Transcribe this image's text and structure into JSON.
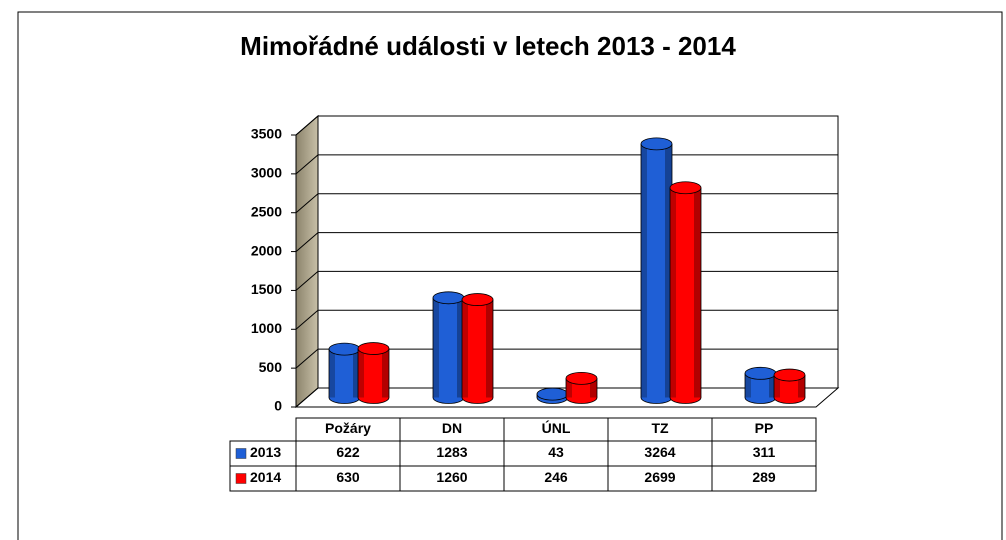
{
  "chart_data": {
    "type": "bar",
    "title": "Mimořádné události v letech 2013 - 2014",
    "categories": [
      "Požáry",
      "DN",
      "ÚNL",
      "TZ",
      "PP"
    ],
    "series": [
      {
        "name": "2013",
        "color": "#1f5fd6",
        "values": [
          622,
          1283,
          43,
          3264,
          311
        ]
      },
      {
        "name": "2014",
        "color": "#ff0000",
        "values": [
          630,
          1260,
          246,
          2699,
          289
        ]
      }
    ],
    "ylim": [
      0,
      3500
    ],
    "yticks": [
      0,
      500,
      1000,
      1500,
      2000,
      2500,
      3000,
      3500
    ],
    "grid": true
  }
}
